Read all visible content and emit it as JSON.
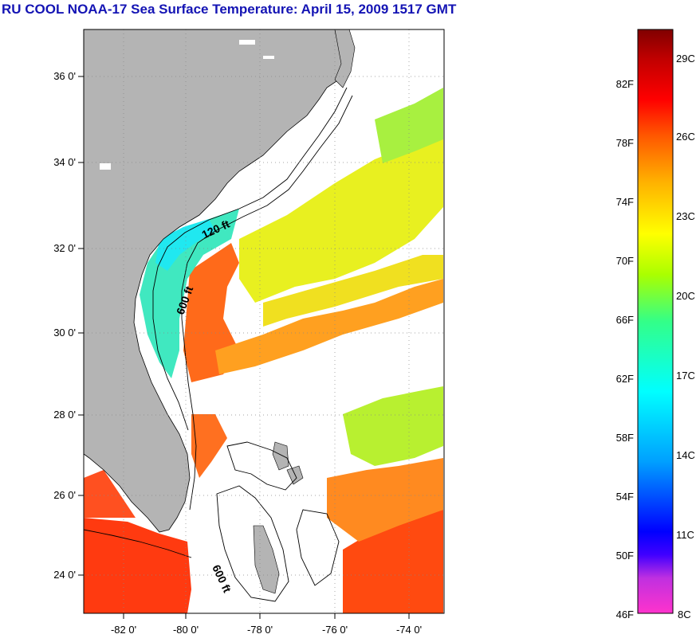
{
  "title": "RU COOL  NOAA-17  Sea Surface Temperature:  April 15, 2009 1517 GMT",
  "map": {
    "lat_labels": [
      "36 0'",
      "34 0'",
      "32 0'",
      "30 0'",
      "28 0'",
      "26 0'",
      "24 0'"
    ],
    "lon_labels": [
      "-82 0'",
      "-80 0'",
      "-78 0'",
      "-76 0'",
      "-74 0'"
    ],
    "contour_labels": [
      "120 ft",
      "600 ft",
      "600 ft"
    ],
    "land_color": "#b4b4b4",
    "cloud_color": "#ffffff"
  },
  "colorbar": {
    "fahrenheit_labels": [
      "82F",
      "78F",
      "74F",
      "70F",
      "66F",
      "62F",
      "58F",
      "54F",
      "50F",
      "46F"
    ],
    "celsius_labels": [
      "29C",
      "26C",
      "23C",
      "20C",
      "17C",
      "14C",
      "11C",
      "8C"
    ],
    "colors": [
      "#ff33cc",
      "#8a2be2",
      "#0000ff",
      "#00b0ff",
      "#00ffff",
      "#33ff88",
      "#aaff00",
      "#ffff00",
      "#ffb000",
      "#ff5500",
      "#ff0000",
      "#b00000",
      "#800000"
    ]
  }
}
